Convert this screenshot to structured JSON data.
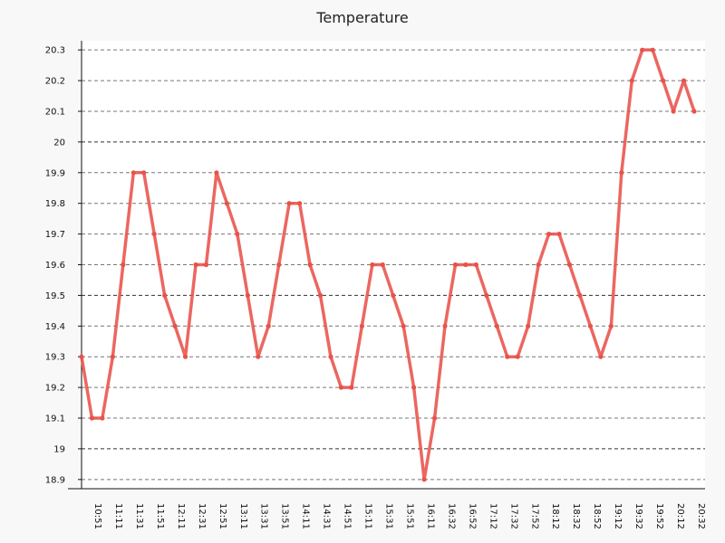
{
  "chart_data": {
    "type": "line",
    "title": "Temperature",
    "xlabel": "",
    "ylabel": "",
    "ylim": [
      18.87,
      20.33
    ],
    "grid": true,
    "legend": "none",
    "yticks": [
      "18.9",
      "19",
      "19.1",
      "19.2",
      "19.3",
      "19.4",
      "19.5",
      "19.6",
      "19.7",
      "19.8",
      "19.9",
      "20",
      "20.1",
      "20.2",
      "20.3"
    ],
    "xticks": [
      "10:51",
      "11:11",
      "11:31",
      "11:51",
      "12:11",
      "12:31",
      "12:51",
      "13:11",
      "13:31",
      "13:51",
      "14:11",
      "14:31",
      "14:51",
      "15:11",
      "15:31",
      "15:51",
      "16:11",
      "16:32",
      "16:52",
      "17:12",
      "17:32",
      "17:52",
      "18:12",
      "18:32",
      "18:52",
      "19:12",
      "19:32",
      "19:52",
      "20:12",
      "20:32"
    ],
    "series": [
      {
        "color": "#e8524a",
        "values": [
          19.3,
          19.1,
          19.1,
          19.3,
          19.6,
          19.9,
          19.9,
          19.7,
          19.5,
          19.4,
          19.3,
          19.6,
          19.6,
          19.9,
          19.8,
          19.7,
          19.5,
          19.3,
          19.4,
          19.6,
          19.8,
          19.8,
          19.6,
          19.5,
          19.3,
          19.2,
          19.2,
          19.4,
          19.6,
          19.6,
          19.5,
          19.4,
          19.2,
          18.9,
          19.1,
          19.4,
          19.6,
          19.6,
          19.6,
          19.5,
          19.4,
          19.3,
          19.3,
          19.4,
          19.6,
          19.7,
          19.7,
          19.6,
          19.5,
          19.4,
          19.3,
          19.4,
          19.9,
          20.2,
          20.3,
          20.3,
          20.2,
          20.1,
          20.2,
          20.1
        ]
      }
    ]
  }
}
